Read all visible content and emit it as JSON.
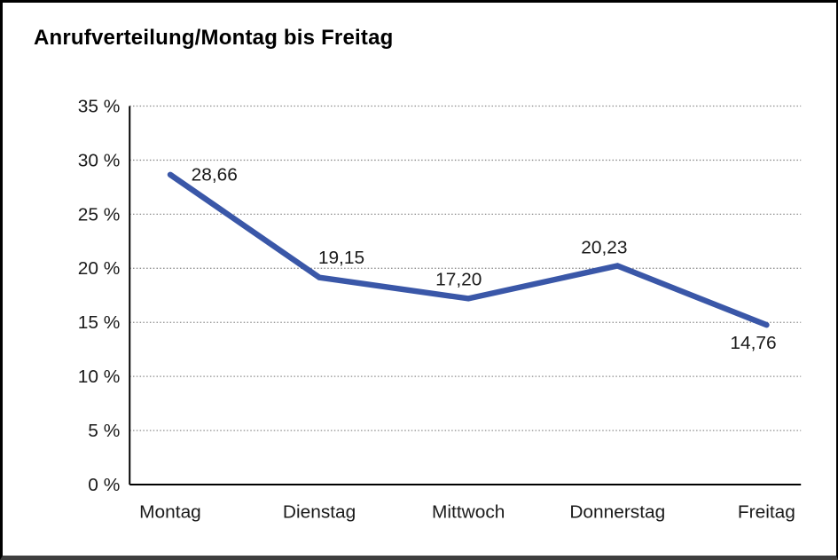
{
  "chart": {
    "title": "Anrufverteilung/Montag bis Freitag"
  },
  "chart_data": {
    "type": "line",
    "title": "Anrufverteilung/Montag bis Freitag",
    "categories": [
      "Montag",
      "Dienstag",
      "Mittwoch",
      "Donnerstag",
      "Freitag"
    ],
    "values": [
      28.66,
      19.15,
      17.2,
      20.23,
      14.76
    ],
    "value_labels": [
      "28,66",
      "19,15",
      "17,20",
      "20,23",
      "14,76"
    ],
    "unit": "%",
    "ylim": [
      0,
      35
    ],
    "y_tick_values": [
      0,
      5,
      10,
      15,
      20,
      25,
      30,
      35
    ],
    "y_tick_labels": [
      "0 %",
      "5 %",
      "10 %",
      "15 %",
      "20 %",
      "25 %",
      "30 %",
      "35 %"
    ],
    "xlabel": "",
    "ylabel": "",
    "legend": "none",
    "grid": "horizontal-dotted",
    "line_color": "#3A57A8",
    "grid_color": "#8c8c8c",
    "axis_color": "#000000",
    "text_color": "#1a1a1a",
    "background_color": "#ffffff"
  }
}
